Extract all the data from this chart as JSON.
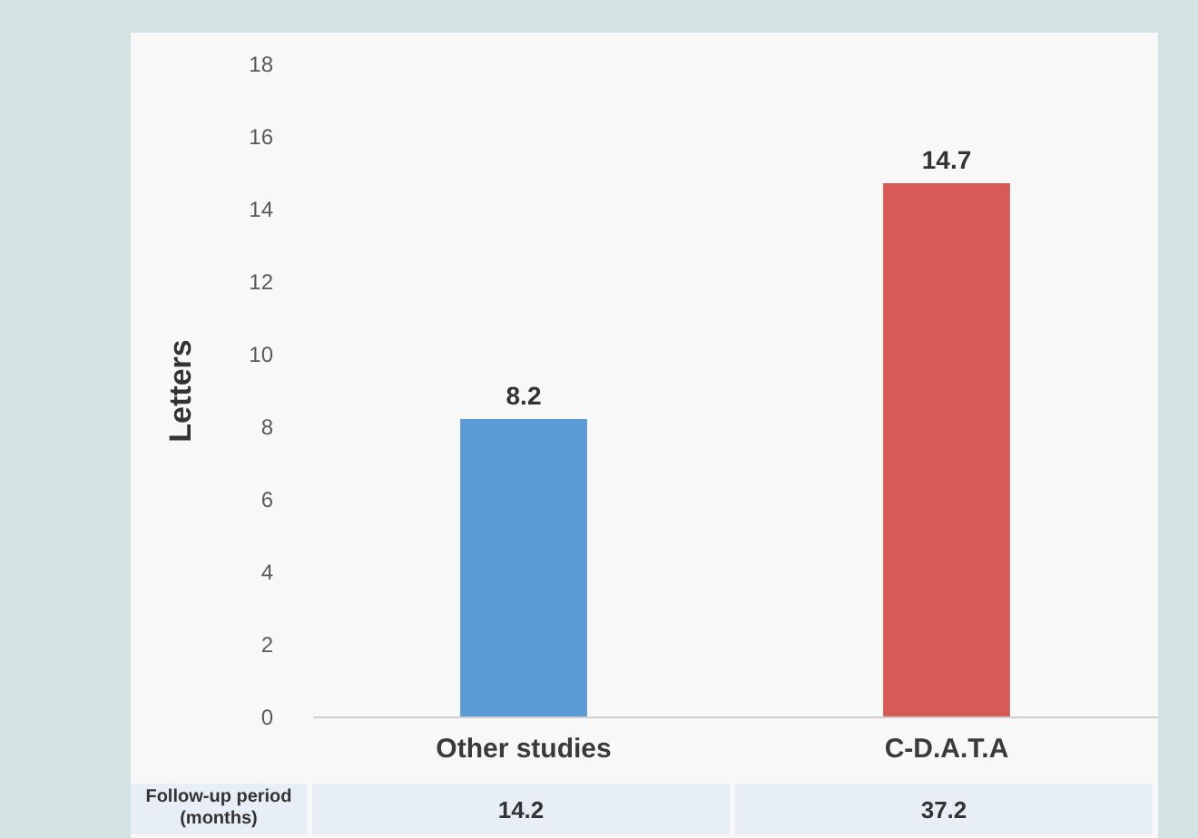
{
  "chart_data": {
    "type": "bar",
    "ylabel": "Letters",
    "categories": [
      "Other studies",
      "C-D.A.T.A"
    ],
    "values": [
      8.2,
      14.7
    ],
    "colors": [
      "#5b9bd5",
      "#d65a56"
    ],
    "ylim": [
      0,
      18
    ],
    "yticks": [
      0,
      2,
      4,
      6,
      8,
      10,
      12,
      14,
      16,
      18
    ],
    "data_labels": true,
    "grid": false,
    "annotations": [
      "Follow-up period\n(months)",
      "14.2",
      "37.2"
    ]
  }
}
